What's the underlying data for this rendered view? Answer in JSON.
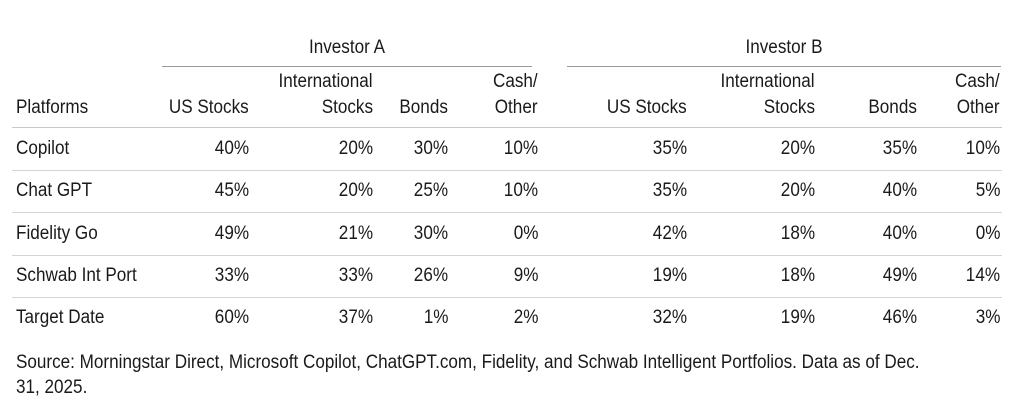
{
  "table": {
    "group_a": "Investor A",
    "group_b": "Investor B",
    "headers": {
      "platforms": "Platforms",
      "a": {
        "us": "US Stocks",
        "intl_line1": "International",
        "intl_line2": "Stocks",
        "bonds": "Bonds",
        "cash_line1": "Cash/",
        "cash_line2": "Other"
      },
      "b": {
        "us": "US Stocks",
        "intl_line1": "International",
        "intl_line2": "Stocks",
        "bonds": "Bonds",
        "cash_line1": "Cash/",
        "cash_line2": "Other"
      }
    },
    "rows": [
      {
        "platform": "Copilot",
        "a": [
          "40%",
          "20%",
          "30%",
          "10%"
        ],
        "b": [
          "35%",
          "20%",
          "35%",
          "10%"
        ]
      },
      {
        "platform": "Chat GPT",
        "a": [
          "45%",
          "20%",
          "25%",
          "10%"
        ],
        "b": [
          "35%",
          "20%",
          "40%",
          "5%"
        ]
      },
      {
        "platform": "Fidelity Go",
        "a": [
          "49%",
          "21%",
          "30%",
          "0%"
        ],
        "b": [
          "42%",
          "18%",
          "40%",
          "0%"
        ]
      },
      {
        "platform": "Schwab Int Port",
        "a": [
          "33%",
          "33%",
          "26%",
          "9%"
        ],
        "b": [
          "19%",
          "18%",
          "49%",
          "14%"
        ]
      },
      {
        "platform": "Target Date",
        "a": [
          "60%",
          "37%",
          "1%",
          "2%"
        ],
        "b": [
          "32%",
          "19%",
          "46%",
          "3%"
        ]
      }
    ],
    "source_line1": "Source: Morningstar Direct, Microsoft Copilot, ChatGPT.com, Fidelity, and Schwab Intelligent Portfolios. Data as of Dec.",
    "source_line2": "31, 2025."
  }
}
